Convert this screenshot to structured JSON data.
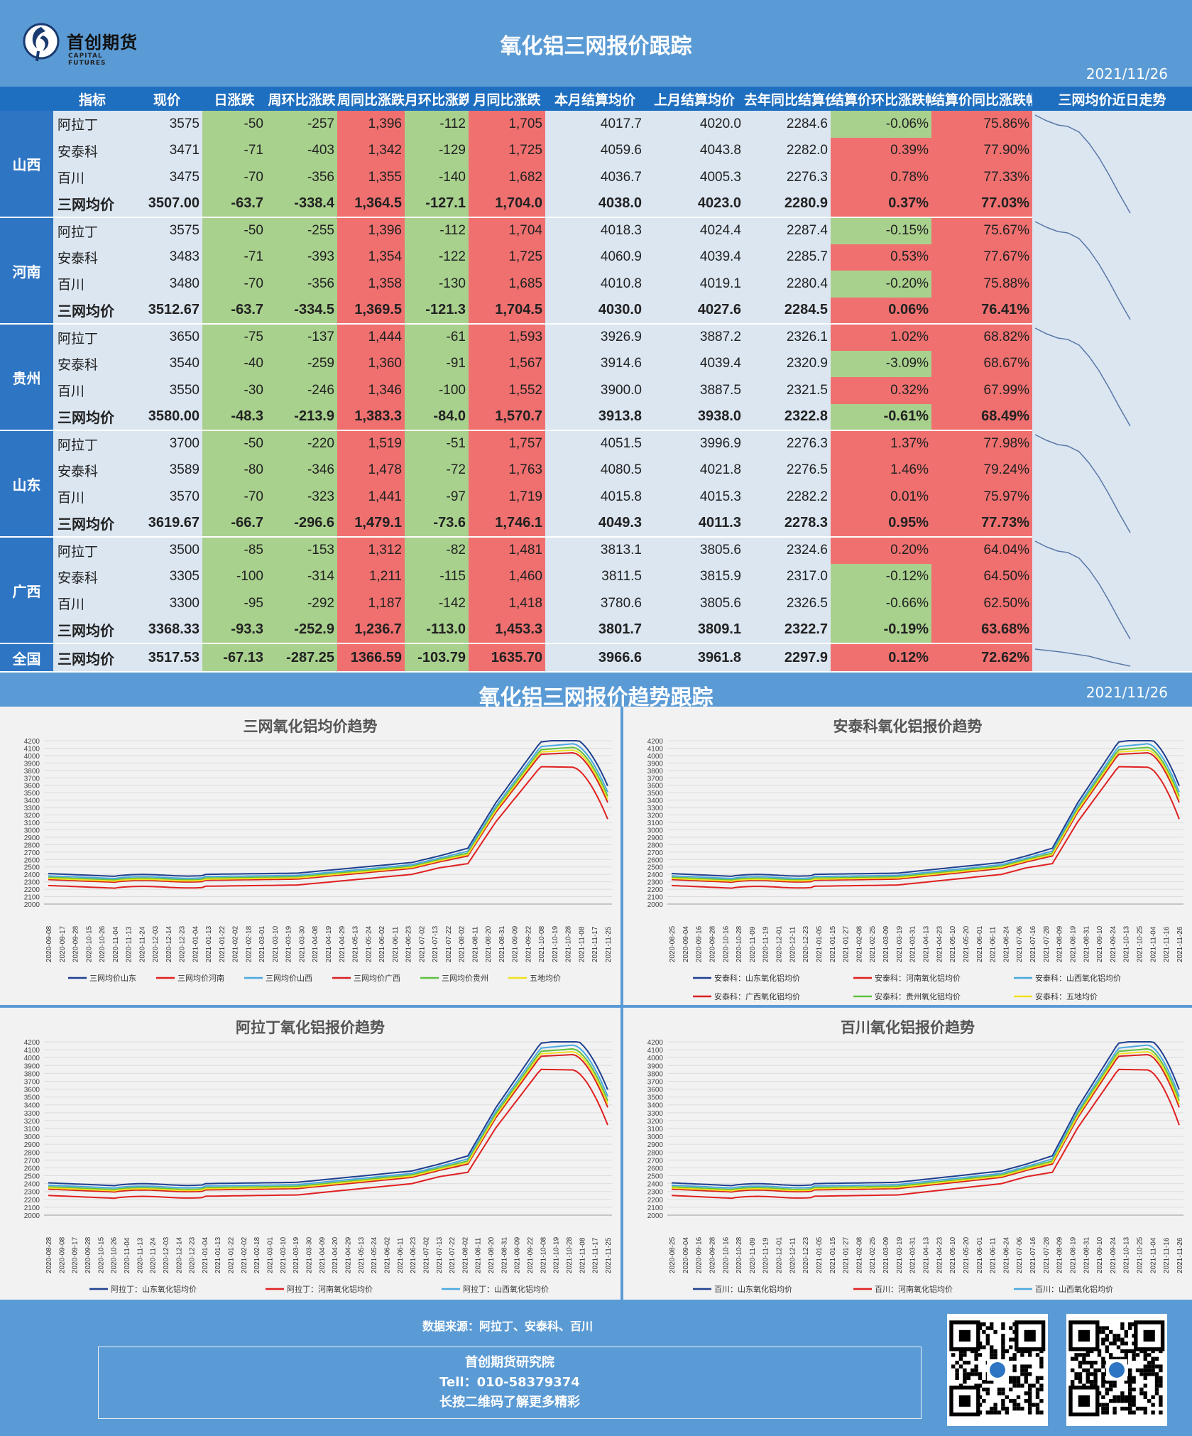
{
  "header": {
    "logo_name": "首创期货",
    "logo_sub": "CAPITAL FUTURES",
    "title": "氧化铝三网报价跟踪",
    "date": "2021/11/26"
  },
  "table": {
    "columns": [
      "指标",
      "现价",
      "日涨跌",
      "周环比涨跌",
      "周同比涨跌",
      "月环比涨跌",
      "月同比涨跌",
      "本月结算均价",
      "上月结算均价",
      "去年同比结算价",
      "结算价环比涨跌幅",
      "结算价同比涨跌幅",
      "三网均价近日走势"
    ],
    "regions": [
      {
        "name": "山西",
        "rows": [
          [
            "阿拉丁",
            "3575",
            "-50",
            "-257",
            "1,396",
            "-112",
            "1,705",
            "4017.7",
            "4020.0",
            "2284.6",
            "-0.06%",
            "75.86%"
          ],
          [
            "安泰科",
            "3471",
            "-71",
            "-403",
            "1,342",
            "-129",
            "1,725",
            "4059.6",
            "4043.8",
            "2282.0",
            "0.39%",
            "77.90%"
          ],
          [
            "百川",
            "3475",
            "-70",
            "-356",
            "1,355",
            "-140",
            "1,682",
            "4036.7",
            "4005.3",
            "2276.3",
            "0.78%",
            "77.33%"
          ],
          [
            "三网均价",
            "3507.00",
            "-63.7",
            "-338.4",
            "1,364.5",
            "-127.1",
            "1,704.0",
            "4038.0",
            "4023.0",
            "2280.9",
            "0.37%",
            "77.03%"
          ]
        ]
      },
      {
        "name": "河南",
        "rows": [
          [
            "阿拉丁",
            "3575",
            "-50",
            "-255",
            "1,396",
            "-112",
            "1,704",
            "4018.3",
            "4024.4",
            "2287.4",
            "-0.15%",
            "75.67%"
          ],
          [
            "安泰科",
            "3483",
            "-71",
            "-393",
            "1,354",
            "-122",
            "1,725",
            "4060.9",
            "4039.4",
            "2285.7",
            "0.53%",
            "77.67%"
          ],
          [
            "百川",
            "3480",
            "-70",
            "-356",
            "1,358",
            "-130",
            "1,685",
            "4010.8",
            "4019.1",
            "2280.4",
            "-0.20%",
            "75.88%"
          ],
          [
            "三网均价",
            "3512.67",
            "-63.7",
            "-334.5",
            "1,369.5",
            "-121.3",
            "1,704.5",
            "4030.0",
            "4027.6",
            "2284.5",
            "0.06%",
            "76.41%"
          ]
        ]
      },
      {
        "name": "贵州",
        "rows": [
          [
            "阿拉丁",
            "3650",
            "-75",
            "-137",
            "1,444",
            "-61",
            "1,593",
            "3926.9",
            "3887.2",
            "2326.1",
            "1.02%",
            "68.82%"
          ],
          [
            "安泰科",
            "3540",
            "-40",
            "-259",
            "1,360",
            "-91",
            "1,567",
            "3914.6",
            "4039.4",
            "2320.9",
            "-3.09%",
            "68.67%"
          ],
          [
            "百川",
            "3550",
            "-30",
            "-246",
            "1,346",
            "-100",
            "1,552",
            "3900.0",
            "3887.5",
            "2321.5",
            "0.32%",
            "67.99%"
          ],
          [
            "三网均价",
            "3580.00",
            "-48.3",
            "-213.9",
            "1,383.3",
            "-84.0",
            "1,570.7",
            "3913.8",
            "3938.0",
            "2322.8",
            "-0.61%",
            "68.49%"
          ]
        ]
      },
      {
        "name": "山东",
        "rows": [
          [
            "阿拉丁",
            "3700",
            "-50",
            "-220",
            "1,519",
            "-51",
            "1,757",
            "4051.5",
            "3996.9",
            "2276.3",
            "1.37%",
            "77.98%"
          ],
          [
            "安泰科",
            "3589",
            "-80",
            "-346",
            "1,478",
            "-72",
            "1,763",
            "4080.5",
            "4021.8",
            "2276.5",
            "1.46%",
            "79.24%"
          ],
          [
            "百川",
            "3570",
            "-70",
            "-323",
            "1,441",
            "-97",
            "1,719",
            "4015.8",
            "4015.3",
            "2282.2",
            "0.01%",
            "75.97%"
          ],
          [
            "三网均价",
            "3619.67",
            "-66.7",
            "-296.6",
            "1,479.1",
            "-73.6",
            "1,746.1",
            "4049.3",
            "4011.3",
            "2278.3",
            "0.95%",
            "77.73%"
          ]
        ]
      },
      {
        "name": "广西",
        "rows": [
          [
            "阿拉丁",
            "3500",
            "-85",
            "-153",
            "1,312",
            "-82",
            "1,481",
            "3813.1",
            "3805.6",
            "2324.6",
            "0.20%",
            "64.04%"
          ],
          [
            "安泰科",
            "3305",
            "-100",
            "-314",
            "1,211",
            "-115",
            "1,460",
            "3811.5",
            "3815.9",
            "2317.0",
            "-0.12%",
            "64.50%"
          ],
          [
            "百川",
            "3300",
            "-95",
            "-292",
            "1,187",
            "-142",
            "1,418",
            "3780.6",
            "3805.6",
            "2326.5",
            "-0.66%",
            "62.50%"
          ],
          [
            "三网均价",
            "3368.33",
            "-93.3",
            "-252.9",
            "1,236.7",
            "-113.0",
            "1,453.3",
            "3801.7",
            "3809.1",
            "2322.7",
            "-0.19%",
            "63.68%"
          ]
        ]
      },
      {
        "name": "全国",
        "rows": [
          [
            "三网均价",
            "3517.53",
            "-67.13",
            "-287.25",
            "1366.59",
            "-103.79",
            "1635.70",
            "3966.6",
            "3961.8",
            "2297.9",
            "0.12%",
            "72.62%"
          ]
        ]
      }
    ]
  },
  "section2": {
    "title": "氧化铝三网报价趋势跟踪",
    "date": "2021/11/26"
  },
  "chart_data": [
    {
      "type": "line",
      "title": "三网氧化铝均价趋势",
      "ylim": [
        2000,
        4200
      ],
      "x_ticks": [
        "2020-09-08",
        "2020-09-17",
        "2020-09-28",
        "2020-10-15",
        "2020-10-26",
        "2020-11-04",
        "2020-11-13",
        "2020-11-24",
        "2020-12-03",
        "2020-12-14",
        "2020-12-23",
        "2021-01-04",
        "2021-01-13",
        "2021-01-22",
        "2021-02-02",
        "2021-02-18",
        "2021-03-01",
        "2021-03-10",
        "2021-03-19",
        "2021-03-30",
        "2021-04-08",
        "2021-04-19",
        "2021-04-29",
        "2021-05-13",
        "2021-05-24",
        "2021-06-02",
        "2021-06-11",
        "2021-06-23",
        "2021-07-02",
        "2021-07-13",
        "2021-07-22",
        "2021-08-02",
        "2021-08-11",
        "2021-08-20",
        "2021-08-31",
        "2021-09-09",
        "2021-09-22",
        "2021-10-08",
        "2021-10-19",
        "2021-10-28",
        "2021-11-08",
        "2021-11-17",
        "2021-11-25"
      ],
      "series": [
        {
          "name": "三网均价山东",
          "color": "#1f3f8f"
        },
        {
          "name": "三网均价河南",
          "color": "#e02020"
        },
        {
          "name": "三网均价山西",
          "color": "#4aa8e0"
        },
        {
          "name": "三网均价广西",
          "color": "#d82020"
        },
        {
          "name": "三网均价贵州",
          "color": "#60c040"
        },
        {
          "name": "五地均价",
          "color": "#f0e020"
        }
      ]
    },
    {
      "type": "line",
      "title": "安泰科氧化铝报价趋势",
      "ylim": [
        2000,
        4200
      ],
      "x_ticks": [
        "2020-08-25",
        "2020-09-04",
        "2020-09-16",
        "2020-09-28",
        "2020-10-16",
        "2020-10-28",
        "2020-11-09",
        "2020-11-19",
        "2020-12-01",
        "2020-12-11",
        "2020-12-23",
        "2021-01-05",
        "2021-01-15",
        "2021-01-27",
        "2021-02-08",
        "2021-02-25",
        "2021-03-09",
        "2021-03-19",
        "2021-03-31",
        "2021-04-13",
        "2021-04-23",
        "2021-05-10",
        "2021-05-20",
        "2021-06-01",
        "2021-06-11",
        "2021-06-24",
        "2021-07-06",
        "2021-07-16",
        "2021-07-28",
        "2021-08-09",
        "2021-08-19",
        "2021-08-31",
        "2021-09-10",
        "2021-09-24",
        "2021-10-13",
        "2021-10-25",
        "2021-11-04",
        "2021-11-16",
        "2021-11-26"
      ],
      "series": [
        {
          "name": "安泰科：山东氧化铝均价",
          "color": "#1f3f8f"
        },
        {
          "name": "安泰科：河南氧化铝均价",
          "color": "#e02020"
        },
        {
          "name": "安泰科：山西氧化铝均价",
          "color": "#4aa8e0"
        },
        {
          "name": "安泰科：广西氧化铝均价",
          "color": "#d82020"
        },
        {
          "name": "安泰科：贵州氧化铝均价",
          "color": "#60c040"
        },
        {
          "name": "安泰科：五地均价",
          "color": "#f0e020"
        }
      ]
    },
    {
      "type": "line",
      "title": "阿拉丁氧化铝报价趋势",
      "ylim": [
        2000,
        4200
      ],
      "x_ticks": [
        "2020-08-28",
        "2020-09-08",
        "2020-09-17",
        "2020-09-28",
        "2020-10-15",
        "2020-10-26",
        "2020-11-04",
        "2020-11-13",
        "2020-11-24",
        "2020-12-03",
        "2020-12-14",
        "2020-12-23",
        "2021-01-04",
        "2021-01-13",
        "2021-01-22",
        "2021-02-02",
        "2021-02-18",
        "2021-03-01",
        "2021-03-10",
        "2021-03-19",
        "2021-03-30",
        "2021-04-09",
        "2021-04-20",
        "2021-04-29",
        "2021-05-13",
        "2021-05-24",
        "2021-06-02",
        "2021-06-11",
        "2021-06-23",
        "2021-07-02",
        "2021-07-13",
        "2021-07-22",
        "2021-08-02",
        "2021-08-11",
        "2021-08-20",
        "2021-08-31",
        "2021-09-09",
        "2021-09-22",
        "2021-10-08",
        "2021-10-19",
        "2021-10-28",
        "2021-11-08",
        "2021-11-17",
        "2021-11-25"
      ],
      "series": [
        {
          "name": "阿拉丁：山东氧化铝均价",
          "color": "#1f3f8f"
        },
        {
          "name": "阿拉丁：河南氧化铝均价",
          "color": "#e02020"
        },
        {
          "name": "阿拉丁：山西氧化铝均价",
          "color": "#4aa8e0"
        },
        {
          "name": "阿拉丁：广西氧化铝均价",
          "color": "#d82020"
        },
        {
          "name": "阿拉丁：贵州氧化铝均价",
          "color": "#60c040"
        },
        {
          "name": "阿拉丁：五地均价",
          "color": "#f0e020"
        }
      ]
    },
    {
      "type": "line",
      "title": "百川氧化铝报价趋势",
      "ylim": [
        2000,
        4200
      ],
      "x_ticks": [
        "2020-08-25",
        "2020-09-04",
        "2020-09-16",
        "2020-09-28",
        "2020-10-16",
        "2020-10-28",
        "2020-11-09",
        "2020-11-19",
        "2020-12-01",
        "2020-12-11",
        "2020-12-23",
        "2021-01-05",
        "2021-01-15",
        "2021-01-27",
        "2021-02-08",
        "2021-02-25",
        "2021-03-09",
        "2021-03-19",
        "2021-03-31",
        "2021-04-13",
        "2021-04-23",
        "2021-05-10",
        "2021-05-20",
        "2021-06-01",
        "2021-06-11",
        "2021-06-24",
        "2021-07-06",
        "2021-07-16",
        "2021-07-28",
        "2021-08-09",
        "2021-08-19",
        "2021-08-31",
        "2021-09-10",
        "2021-09-24",
        "2021-10-13",
        "2021-10-25",
        "2021-11-04",
        "2021-11-16",
        "2021-11-26"
      ],
      "series": [
        {
          "name": "百川：山东氧化铝均价",
          "color": "#1f3f8f"
        },
        {
          "name": "百川：河南氧化铝均价",
          "color": "#e02020"
        },
        {
          "name": "百川：山西氧化铝均价",
          "color": "#4aa8e0"
        },
        {
          "name": "百川：广西氧化铝均价",
          "color": "#d82020"
        },
        {
          "name": "百川：贵州氧化铝均价",
          "color": "#60c040"
        },
        {
          "name": "百川：五地均价",
          "color": "#f0e020"
        }
      ]
    }
  ],
  "footer": {
    "source": "数据来源：阿拉丁、安泰科、百川",
    "org": "首创期货研究院",
    "tel": "Tell：010-58379374",
    "qr_hint": "长按二维码了解更多精彩"
  },
  "colors": {
    "positive": "#f07070",
    "negative": "#a9d18e",
    "header": "#1f6fc0",
    "background": "#5b9bd5"
  }
}
